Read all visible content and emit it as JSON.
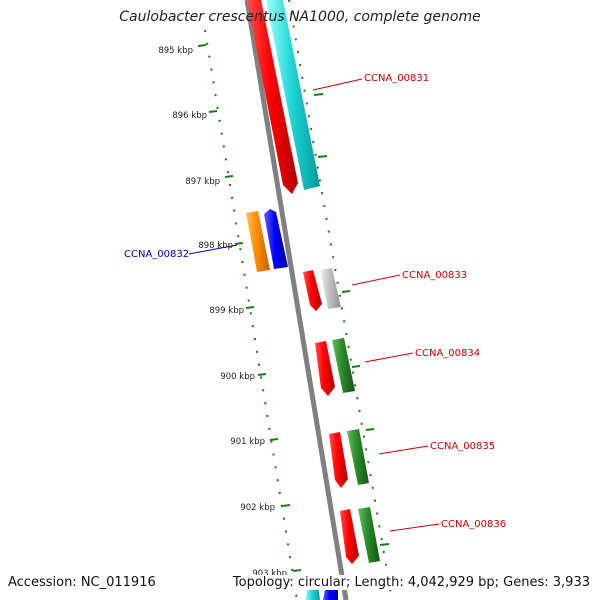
{
  "title": "Caulobacter crescentus NA1000, complete genome",
  "footer": {
    "accession": "Accession: NC_011916",
    "topology": "Topology: circular; Length: 4,042,929 bp; Genes: 3,933"
  },
  "ticks": [
    {
      "label": "895 kbp"
    },
    {
      "label": "896 kbp"
    },
    {
      "label": "897 kbp"
    },
    {
      "label": "898 kbp"
    },
    {
      "label": "899 kbp"
    },
    {
      "label": "900 kbp"
    },
    {
      "label": "901 kbp"
    },
    {
      "label": "902 kbp"
    },
    {
      "label": "903 kbp"
    }
  ],
  "genes": [
    {
      "label": "CCNA_00831",
      "strand": "+",
      "color": "#cc0000"
    },
    {
      "label": "CCNA_00832",
      "strand": "-",
      "color": "#0000cc"
    },
    {
      "label": "CCNA_00833",
      "strand": "+",
      "color": "#cc0000"
    },
    {
      "label": "CCNA_00834",
      "strand": "+",
      "color": "#cc0000"
    },
    {
      "label": "CCNA_00835",
      "strand": "+",
      "color": "#cc0000"
    },
    {
      "label": "CCNA_00836",
      "strand": "+",
      "color": "#cc0000"
    }
  ],
  "colors": {
    "red_feature": "#ff0000",
    "cyan_feature": "#00cccc",
    "orange_feature": "#ff8800",
    "blue_feature": "#0000ff",
    "gray_feature": "#bbbbbb",
    "green_feature": "#228b22",
    "backbone": "#808080",
    "tick_dots": "#1a7a1a"
  }
}
